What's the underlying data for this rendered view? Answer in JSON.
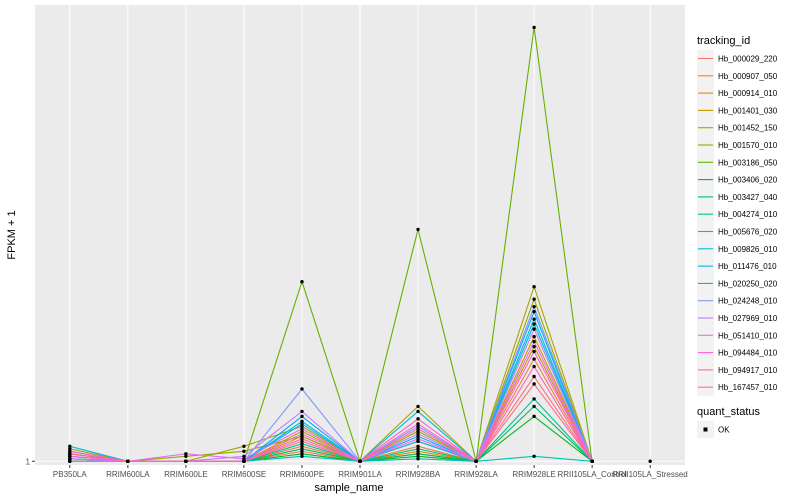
{
  "chart_data": {
    "type": "line",
    "xlabel": "sample_name",
    "ylabel": "FPKM + 1",
    "categories": [
      "PB350LA",
      "RRIM600LA",
      "RRIM600LE",
      "RRIM600SE",
      "RRIM600PE",
      "RRIM901LA",
      "RRIM928BA",
      "RRIM928LA",
      "RRIM928LE",
      "RRII105LA_Control",
      "RRII105LA_Stressed"
    ],
    "y_ticks": [
      {
        "value": 1,
        "label": "1"
      }
    ],
    "ylim": [
      0.85,
      19.3
    ],
    "grid": true,
    "panel_background": "#ebebeb",
    "legend_position": "right",
    "legend_title": "tracking_id",
    "series": [
      {
        "name": "Hb_000029_220",
        "color": "#F8766D",
        "values": [
          1.3,
          1,
          1,
          1,
          1.4,
          1,
          1.3,
          1,
          4.4,
          1,
          null
        ]
      },
      {
        "name": "Hb_000907_050",
        "color": "#EC8239",
        "values": [
          1.1,
          1,
          1,
          1,
          1.6,
          1,
          1.6,
          1,
          5.1,
          1,
          null
        ]
      },
      {
        "name": "Hb_000914_010",
        "color": "#DB8E00",
        "values": [
          1.2,
          1,
          1,
          1,
          2.0,
          1,
          1.4,
          1,
          5.6,
          1,
          null
        ]
      },
      {
        "name": "Hb_001401_030",
        "color": "#C79800",
        "values": [
          1.0,
          1,
          1,
          1,
          2.2,
          1,
          1.8,
          1,
          6.0,
          1,
          null
        ]
      },
      {
        "name": "Hb_001452_150",
        "color": "#AEA200",
        "values": [
          1.5,
          1,
          1,
          1.6,
          2.4,
          1,
          3.2,
          1,
          8.0,
          1,
          null
        ]
      },
      {
        "name": "Hb_001570_010",
        "color": "#8FAA00",
        "values": [
          1.3,
          1,
          1.2,
          1.4,
          2.0,
          1,
          2.2,
          1,
          7.5,
          1,
          null
        ]
      },
      {
        "name": "Hb_003186_050",
        "color": "#64B200",
        "values": [
          1.0,
          1,
          1,
          1,
          8.2,
          1,
          10.3,
          1,
          18.4,
          1,
          null
        ]
      },
      {
        "name": "Hb_003406_020",
        "color": "#00B81B",
        "values": [
          1.0,
          1,
          1,
          1,
          1.3,
          1,
          1.2,
          1,
          2.8,
          1,
          null
        ]
      },
      {
        "name": "Hb_003427_040",
        "color": "#00BD5C",
        "values": [
          1.1,
          1,
          1,
          1,
          1.5,
          1,
          1.3,
          1,
          3.2,
          1,
          null
        ]
      },
      {
        "name": "Hb_004274_010",
        "color": "#00C08E",
        "values": [
          1.2,
          1,
          1,
          1,
          1.7,
          1,
          1.5,
          1,
          3.5,
          1,
          null
        ]
      },
      {
        "name": "Hb_005676_020",
        "color": "#00C1B7",
        "values": [
          1.0,
          1,
          1,
          1,
          1.2,
          1,
          1.1,
          1,
          1.2,
          1,
          null
        ]
      },
      {
        "name": "Hb_009826_010",
        "color": "#00BDDC",
        "values": [
          1.4,
          1,
          1,
          1,
          2.5,
          1,
          3.0,
          1,
          6.5,
          1,
          null
        ]
      },
      {
        "name": "Hb_011476_010",
        "color": "#00B5EE",
        "values": [
          1.6,
          1,
          1,
          1,
          2.6,
          1,
          1.8,
          1,
          6.7,
          1,
          null
        ]
      },
      {
        "name": "Hb_020250_020",
        "color": "#00A8FF",
        "values": [
          1.3,
          1,
          1,
          1,
          2.8,
          1,
          2.0,
          1,
          7.0,
          1,
          null
        ]
      },
      {
        "name": "Hb_024248_010",
        "color": "#7F96FF",
        "values": [
          1.2,
          1,
          1,
          1,
          3.9,
          1,
          2.4,
          1,
          7.2,
          1,
          null
        ]
      },
      {
        "name": "Hb_027969_010",
        "color": "#C77CFF",
        "values": [
          1.1,
          1,
          1,
          1.2,
          3.0,
          1,
          2.1,
          1,
          6.3,
          1,
          null
        ]
      },
      {
        "name": "Hb_051410_010",
        "color": "#E76BF3",
        "values": [
          1.0,
          1,
          1.3,
          1.1,
          2.3,
          1,
          1.9,
          1,
          5.8,
          1,
          null
        ]
      },
      {
        "name": "Hb_094484_010",
        "color": "#FA62DB",
        "values": [
          1.2,
          1,
          1,
          1,
          2.1,
          1,
          2.5,
          1,
          5.4,
          1,
          null
        ]
      },
      {
        "name": "Hb_094917_010",
        "color": "#FF62BC",
        "values": [
          1.4,
          1,
          1,
          1,
          1.9,
          1,
          2.7,
          1,
          4.8,
          1,
          null
        ]
      },
      {
        "name": "Hb_167457_010",
        "color": "#FF6C91",
        "values": [
          1.3,
          1,
          1,
          1,
          1.8,
          1,
          2.3,
          1,
          4.1,
          1,
          null
        ]
      }
    ],
    "status_points": {
      "x": "RRII105LA_Stressed",
      "y": 1
    },
    "legend2_title": "quant_status",
    "legend2_items": [
      "OK"
    ]
  }
}
